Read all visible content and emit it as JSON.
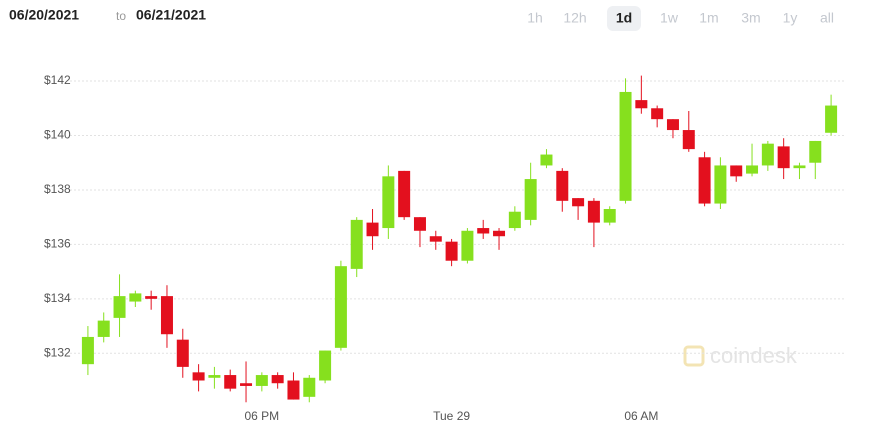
{
  "header": {
    "from": "06/20/2021",
    "to_word": "to",
    "to": "06/21/2021",
    "ranges": [
      "1h",
      "12h",
      "1d",
      "1w",
      "1m",
      "3m",
      "1y",
      "all"
    ],
    "selected_range": "1d"
  },
  "watermark": "coindesk",
  "chart_data": {
    "type": "candlestick",
    "categories": [
      null,
      null,
      null,
      null,
      null,
      null,
      null,
      null,
      null,
      null,
      null,
      "06 PM",
      null,
      null,
      null,
      null,
      null,
      null,
      null,
      null,
      null,
      null,
      null,
      "Tue 29",
      null,
      null,
      null,
      null,
      null,
      null,
      null,
      null,
      null,
      null,
      null,
      "06 AM",
      null,
      null,
      null,
      null,
      null,
      null,
      null,
      null,
      null,
      null,
      null,
      null
    ],
    "open": [
      131.6,
      132.6,
      133.3,
      133.9,
      134.1,
      134.1,
      132.5,
      131.3,
      131.1,
      131.2,
      130.9,
      130.8,
      131.2,
      131.0,
      130.4,
      131.0,
      132.2,
      135.1,
      136.8,
      136.6,
      138.7,
      137.0,
      136.3,
      136.1,
      135.4,
      136.6,
      136.5,
      136.6,
      136.9,
      138.9,
      138.7,
      137.7,
      137.6,
      136.8,
      137.6,
      141.3,
      141.0,
      140.6,
      140.2,
      139.2,
      137.5,
      138.9,
      138.6,
      138.9,
      139.6,
      138.8,
      139.0,
      140.1
    ],
    "high": [
      133.0,
      133.5,
      134.9,
      134.3,
      134.3,
      134.5,
      132.9,
      131.6,
      131.5,
      131.4,
      131.7,
      131.3,
      131.3,
      131.3,
      131.2,
      132.1,
      135.4,
      137.0,
      137.3,
      138.9,
      138.7,
      137.0,
      136.5,
      136.2,
      136.6,
      136.9,
      136.6,
      137.4,
      139.0,
      139.5,
      138.8,
      137.7,
      137.7,
      137.4,
      142.1,
      142.2,
      141.1,
      140.6,
      140.9,
      139.4,
      139.2,
      138.9,
      139.7,
      139.8,
      139.9,
      139.0,
      139.8,
      141.5
    ],
    "low": [
      131.2,
      132.4,
      132.6,
      133.7,
      133.6,
      132.2,
      131.1,
      130.6,
      130.7,
      130.6,
      130.2,
      130.6,
      130.7,
      130.3,
      130.2,
      130.9,
      132.1,
      134.8,
      135.8,
      136.2,
      136.9,
      135.9,
      135.8,
      135.2,
      135.3,
      136.2,
      135.8,
      136.5,
      136.7,
      138.8,
      137.2,
      136.9,
      135.9,
      136.7,
      137.5,
      140.8,
      140.3,
      139.9,
      139.4,
      137.4,
      137.3,
      138.3,
      138.5,
      138.7,
      138.4,
      138.4,
      138.4,
      140.0
    ],
    "close": [
      132.6,
      133.2,
      134.1,
      134.2,
      134.0,
      132.7,
      131.5,
      131.0,
      131.2,
      130.7,
      130.8,
      131.2,
      130.9,
      130.3,
      131.1,
      132.1,
      135.2,
      136.9,
      136.3,
      138.5,
      137.0,
      136.5,
      136.1,
      135.4,
      136.5,
      136.4,
      136.3,
      137.2,
      138.4,
      139.3,
      137.6,
      137.4,
      136.8,
      137.3,
      141.6,
      141.0,
      140.6,
      140.2,
      139.5,
      137.5,
      138.9,
      138.5,
      138.9,
      139.7,
      138.8,
      138.9,
      139.8,
      141.1
    ],
    "up_color": "#86e01e",
    "down_color": "#e3101e",
    "ylim": [
      130.1,
      142.7
    ],
    "yticks": [
      {
        "value": 132,
        "label": "$132"
      },
      {
        "value": 134,
        "label": "$134"
      },
      {
        "value": 136,
        "label": "$136"
      },
      {
        "value": 138,
        "label": "$138"
      },
      {
        "value": 140,
        "label": "$140"
      },
      {
        "value": 142,
        "label": "$142"
      }
    ],
    "grid": true
  }
}
